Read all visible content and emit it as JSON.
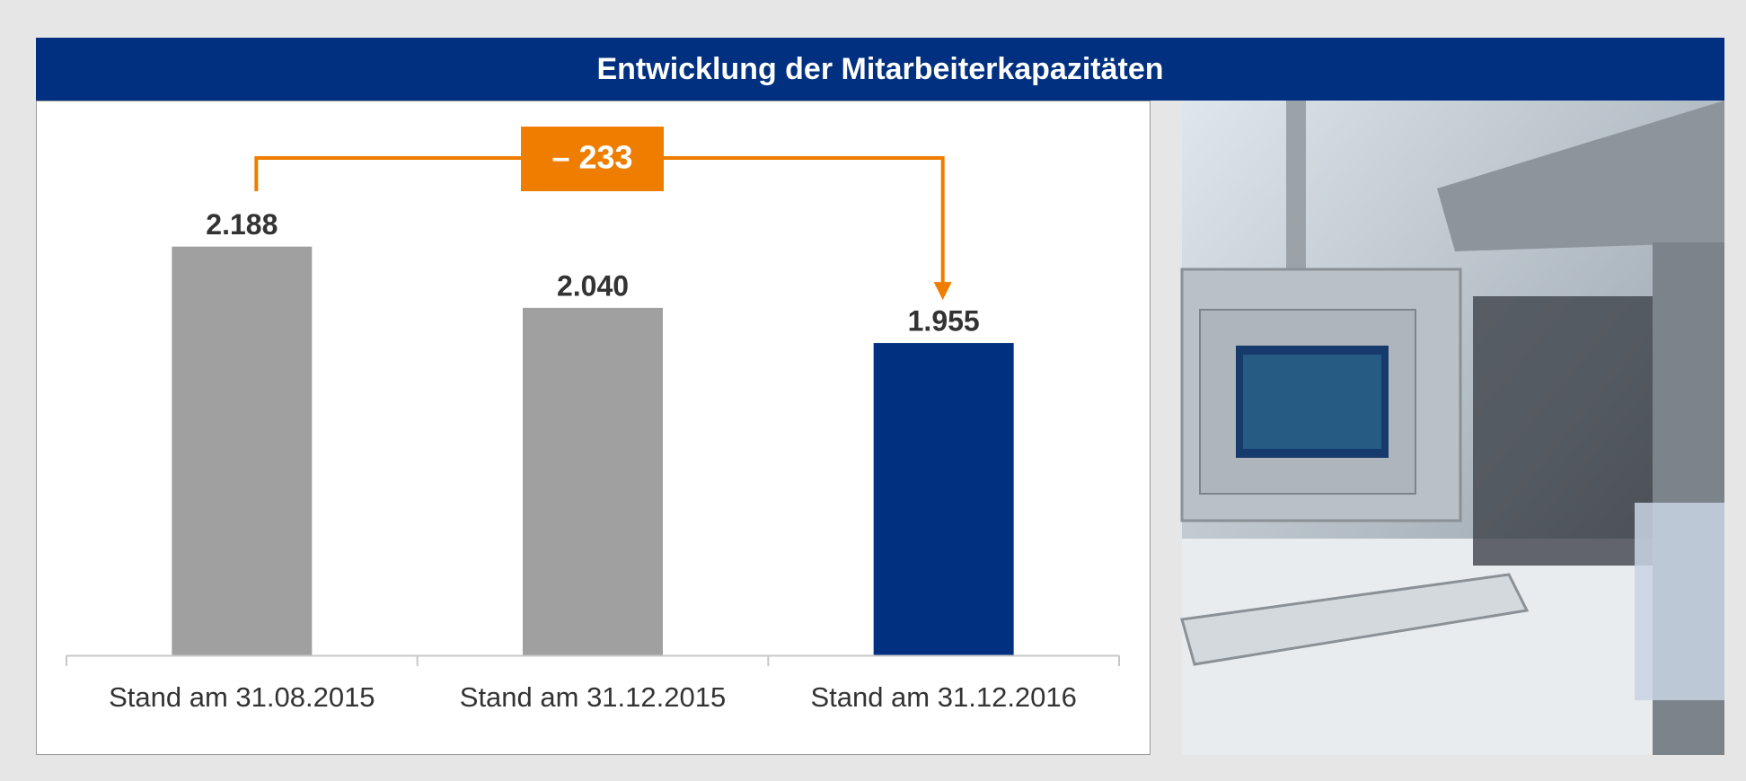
{
  "chart_data": {
    "type": "bar",
    "title": "Entwicklung der Mitarbeiterkapazitäten",
    "categories": [
      "Stand am 31.08.2015",
      "Stand am 31.12.2015",
      "Stand am 31.12.2016"
    ],
    "values": [
      2188,
      2040,
      1955
    ],
    "value_labels": [
      "2.188",
      "2.040",
      "1.955"
    ],
    "colors": [
      "#a0a0a0",
      "#a0a0a0",
      "#00307f"
    ],
    "annotation": "– 233",
    "annotation_color": "#ef7d00",
    "ylim": [
      1200,
      2400
    ]
  }
}
